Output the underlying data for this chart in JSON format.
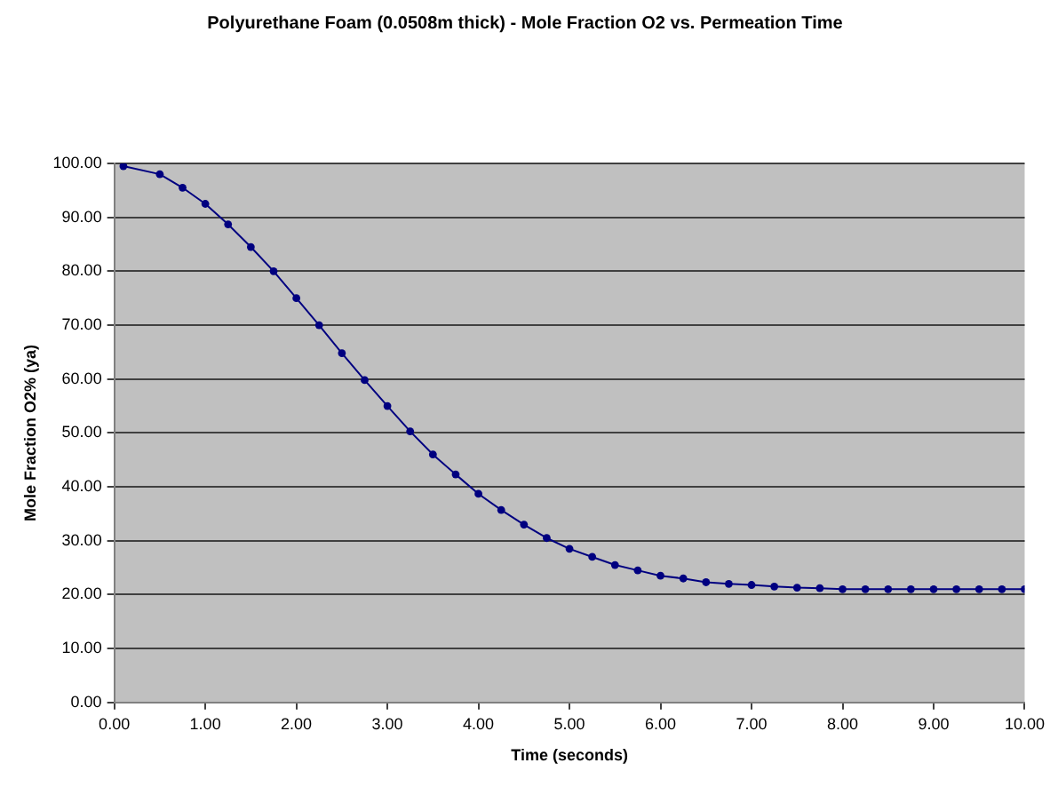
{
  "chart_data": {
    "type": "line",
    "title": "Polyurethane Foam (0.0508m thick) - Mole Fraction O2 vs. Permeation Time",
    "xlabel": "Time (seconds)",
    "ylabel": "Mole Fraction O2% (ya)",
    "x": [
      0.1,
      0.5,
      0.75,
      1.0,
      1.25,
      1.5,
      1.75,
      2.0,
      2.25,
      2.5,
      2.75,
      3.0,
      3.25,
      3.5,
      3.75,
      4.0,
      4.25,
      4.5,
      4.75,
      5.0,
      5.25,
      5.5,
      5.75,
      6.0,
      6.25,
      6.5,
      6.75,
      7.0,
      7.25,
      7.5,
      7.75,
      8.0,
      8.25,
      8.5,
      8.75,
      9.0,
      9.25,
      9.5,
      9.75,
      10.0
    ],
    "series": [
      {
        "color": "#000080",
        "values": [
          99.5,
          98.0,
          95.5,
          92.5,
          88.7,
          84.5,
          80.0,
          75.0,
          70.0,
          64.8,
          59.8,
          55.0,
          50.3,
          46.0,
          42.3,
          38.7,
          35.7,
          33.0,
          30.5,
          28.5,
          27.0,
          25.5,
          24.5,
          23.5,
          23.0,
          22.3,
          22.0,
          21.8,
          21.5,
          21.3,
          21.2,
          21.0,
          21.0,
          21.0,
          21.0,
          21.0,
          21.0,
          21.0,
          21.0,
          21.0
        ]
      }
    ],
    "xlim": [
      0,
      10
    ],
    "ylim": [
      0,
      100
    ],
    "xticks": [
      {
        "value": 0,
        "label": "0.00"
      },
      {
        "value": 1,
        "label": "1.00"
      },
      {
        "value": 2,
        "label": "2.00"
      },
      {
        "value": 3,
        "label": "3.00"
      },
      {
        "value": 4,
        "label": "4.00"
      },
      {
        "value": 5,
        "label": "5.00"
      },
      {
        "value": 6,
        "label": "6.00"
      },
      {
        "value": 7,
        "label": "7.00"
      },
      {
        "value": 8,
        "label": "8.00"
      },
      {
        "value": 9,
        "label": "9.00"
      },
      {
        "value": 10,
        "label": "10.00"
      }
    ],
    "yticks": [
      {
        "value": 0,
        "label": "0.00"
      },
      {
        "value": 10,
        "label": "10.00"
      },
      {
        "value": 20,
        "label": "20.00"
      },
      {
        "value": 30,
        "label": "30.00"
      },
      {
        "value": 40,
        "label": "40.00"
      },
      {
        "value": 50,
        "label": "50.00"
      },
      {
        "value": 60,
        "label": "60.00"
      },
      {
        "value": 70,
        "label": "70.00"
      },
      {
        "value": 80,
        "label": "80.00"
      },
      {
        "value": 90,
        "label": "90.00"
      },
      {
        "value": 100,
        "label": "100.00"
      }
    ],
    "grid": "y",
    "legend": false,
    "marker": "circle",
    "line_style": "solid"
  }
}
